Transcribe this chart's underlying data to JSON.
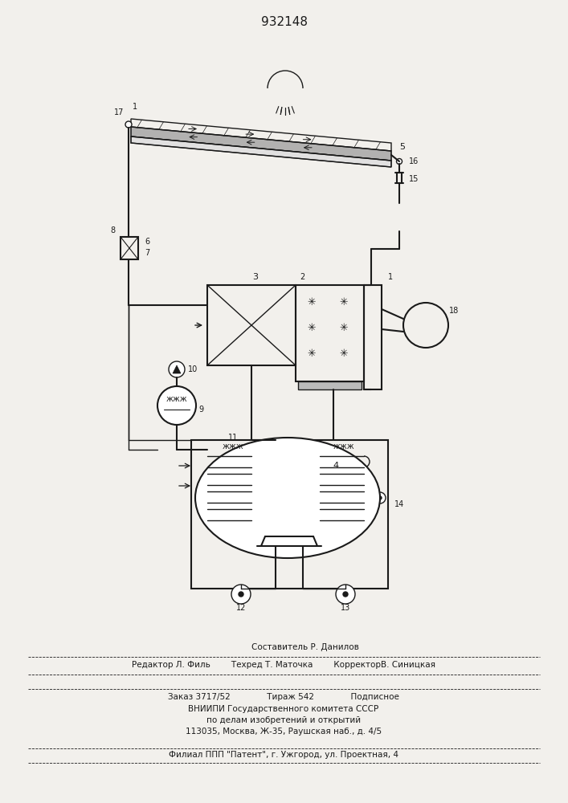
{
  "title": "932148",
  "bg_color": "#f2f0ec",
  "line_color": "#1a1a1a",
  "footer_lines": [
    "Составитель Р. Данилов",
    "Редактор Л. Филь     Техред Т. Маточка     КорректорВ. Синицкая",
    "Заказ 3717/52          Тираж 542          Подписное",
    "ВНИИПИ Государственного комитета СССР",
    "по делам изобретений и открытий",
    "113035, Москва, Ж-35, Раушская наб., д. 4/5",
    "Филиал ППП \"Патент\", г. Ужгород, ул. Проектная, 4"
  ]
}
